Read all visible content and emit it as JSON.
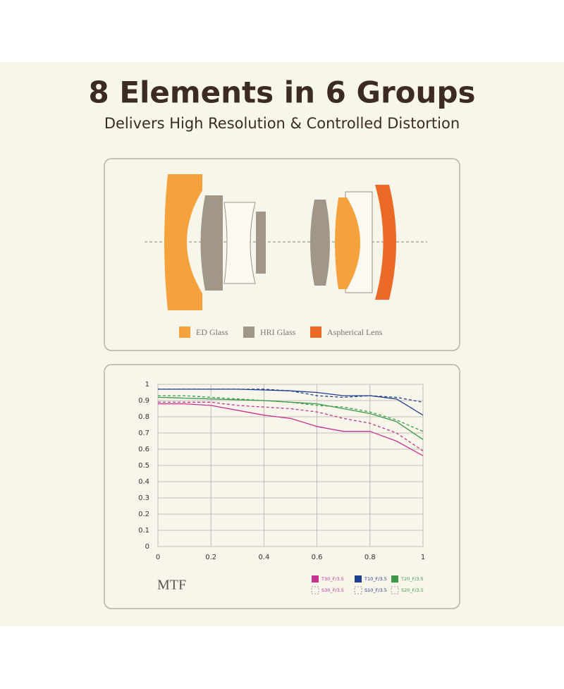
{
  "header": {
    "title": "8 Elements in 6 Groups",
    "subtitle": "Delivers High Resolution & Controlled Distortion"
  },
  "lens_legend": [
    {
      "label": "ED Glass",
      "color": "#f5a23c"
    },
    {
      "label": "HRI Glass",
      "color": "#a09789"
    },
    {
      "label": "Aspherical Lens",
      "color": "#ec6a27"
    }
  ],
  "chart_data": {
    "type": "line",
    "title": "MTF",
    "x": [
      0,
      0.1,
      0.2,
      0.3,
      0.4,
      0.5,
      0.6,
      0.7,
      0.8,
      0.9,
      1
    ],
    "series": [
      {
        "name": "T30_F/3.5",
        "color": "#c8338f",
        "style": "solid",
        "values": [
          0.88,
          0.88,
          0.87,
          0.84,
          0.81,
          0.79,
          0.74,
          0.71,
          0.71,
          0.65,
          0.56
        ]
      },
      {
        "name": "S30_F/3.5",
        "color": "#c8338f",
        "style": "dashed",
        "values": [
          0.89,
          0.89,
          0.89,
          0.87,
          0.86,
          0.85,
          0.83,
          0.79,
          0.76,
          0.7,
          0.59
        ]
      },
      {
        "name": "T10_F/3.5",
        "color": "#1f3f8f",
        "style": "solid",
        "values": [
          0.97,
          0.97,
          0.97,
          0.97,
          0.965,
          0.96,
          0.95,
          0.93,
          0.93,
          0.91,
          0.81
        ]
      },
      {
        "name": "S10_F/3.5",
        "color": "#1f3f8f",
        "style": "dashed",
        "values": [
          0.97,
          0.97,
          0.97,
          0.97,
          0.97,
          0.96,
          0.93,
          0.92,
          0.93,
          0.92,
          0.89
        ]
      },
      {
        "name": "T20_F/3.5",
        "color": "#3a9a4a",
        "style": "solid",
        "values": [
          0.92,
          0.915,
          0.91,
          0.905,
          0.9,
          0.89,
          0.88,
          0.85,
          0.82,
          0.77,
          0.66
        ]
      },
      {
        "name": "S20_F/3.5",
        "color": "#3a9a4a",
        "style": "dashed",
        "values": [
          0.93,
          0.93,
          0.92,
          0.91,
          0.9,
          0.89,
          0.87,
          0.86,
          0.83,
          0.78,
          0.71
        ]
      }
    ],
    "xlim": [
      0,
      1
    ],
    "xticks": [
      0,
      0.2,
      0.4,
      0.6,
      0.8,
      1
    ],
    "ylim": [
      0,
      1
    ],
    "yticks": [
      0,
      0.1,
      0.2,
      0.3,
      0.4,
      0.5,
      0.6,
      0.7,
      0.8,
      0.9,
      1
    ],
    "grid": true
  }
}
